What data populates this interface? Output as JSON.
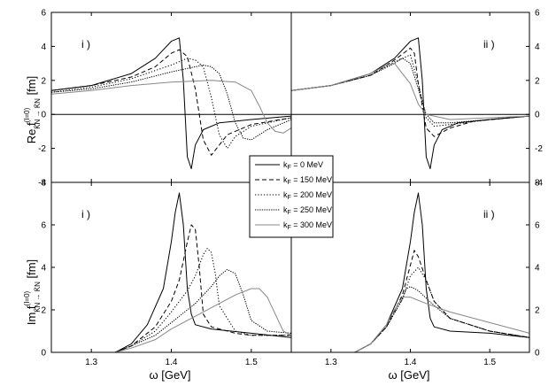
{
  "chart_data": {
    "type": "line",
    "x_unit": "GeV",
    "xlabel": "ω [GeV]",
    "xlim": [
      1.25,
      1.55
    ],
    "x_ticks": [
      "1.3",
      "1.4",
      "1.5"
    ],
    "rows": [
      {
        "ylabel": {
          "pre": "Re f",
          "sup": "(I=0)",
          "sub": "K̄N → K̄N",
          "post": " [fm]"
        },
        "ylim": [
          -4,
          6
        ],
        "y_ticks": [
          "-4",
          "-2",
          "0",
          "2",
          "4",
          "6"
        ],
        "y_ticks_right": [
          "-4",
          "-2",
          "0",
          "2",
          "4",
          "6"
        ]
      },
      {
        "ylabel": {
          "pre": "Im f",
          "sup": "(I=0)",
          "sub": "K̄N → K̄N",
          "post": " [fm]"
        },
        "ylim": [
          0,
          8
        ],
        "y_ticks": [
          "0",
          "2",
          "4",
          "6",
          "8"
        ],
        "y_ticks_right": [
          "0",
          "2",
          "4",
          "6",
          "8"
        ]
      }
    ],
    "panel_labels": [
      "i )",
      "ii )",
      "i )",
      "ii )"
    ],
    "legend": {
      "placement": "center",
      "entries": [
        {
          "label": "k = 0 MeV",
          "sub": "F",
          "dash": "solid",
          "color": "#000000"
        },
        {
          "label": "k = 150 MeV",
          "sub": "F",
          "dash": "dashed",
          "color": "#000000"
        },
        {
          "label": "k = 200 MeV",
          "sub": "F",
          "dash": "dotted",
          "color": "#000000"
        },
        {
          "label": "k = 250 MeV",
          "sub": "F",
          "dash": "dashdot",
          "color": "#000000"
        },
        {
          "label": "k = 300 MeV",
          "sub": "F",
          "dash": "solid",
          "color": "#888888"
        }
      ]
    },
    "panels": [
      {
        "id": "re-i",
        "series": [
          {
            "legend_index": 0,
            "x": [
              1.25,
              1.3,
              1.35,
              1.38,
              1.4,
              1.41,
              1.415,
              1.42,
              1.425,
              1.43,
              1.44,
              1.46,
              1.5,
              1.55
            ],
            "y": [
              1.4,
              1.7,
              2.4,
              3.3,
              4.3,
              4.5,
              2.0,
              -2.5,
              -3.2,
              -1.8,
              -0.9,
              -0.5,
              -0.3,
              -0.1
            ]
          },
          {
            "legend_index": 1,
            "x": [
              1.25,
              1.3,
              1.35,
              1.38,
              1.4,
              1.41,
              1.42,
              1.43,
              1.44,
              1.45,
              1.47,
              1.5,
              1.55
            ],
            "y": [
              1.4,
              1.7,
              2.2,
              2.8,
              3.6,
              3.8,
              3.4,
              1.5,
              -1.5,
              -2.4,
              -1.2,
              -0.6,
              -0.2
            ]
          },
          {
            "legend_index": 2,
            "x": [
              1.25,
              1.3,
              1.35,
              1.4,
              1.42,
              1.43,
              1.44,
              1.45,
              1.46,
              1.47,
              1.48,
              1.5,
              1.55
            ],
            "y": [
              1.3,
              1.6,
              2.1,
              2.9,
              3.3,
              3.2,
              2.8,
              1.0,
              -1.2,
              -2.0,
              -1.3,
              -0.7,
              -0.2
            ]
          },
          {
            "legend_index": 3,
            "x": [
              1.25,
              1.3,
              1.35,
              1.4,
              1.44,
              1.45,
              1.46,
              1.47,
              1.48,
              1.49,
              1.5,
              1.52,
              1.55
            ],
            "y": [
              1.3,
              1.5,
              1.9,
              2.5,
              2.9,
              2.8,
              2.4,
              1.2,
              -0.5,
              -1.4,
              -1.5,
              -0.9,
              -0.3
            ]
          },
          {
            "legend_index": 4,
            "x": [
              1.25,
              1.3,
              1.35,
              1.4,
              1.45,
              1.48,
              1.5,
              1.51,
              1.52,
              1.53,
              1.54,
              1.55
            ],
            "y": [
              1.2,
              1.4,
              1.7,
              1.9,
              2.0,
              1.9,
              1.4,
              0.5,
              -0.5,
              -1.0,
              -1.1,
              -0.8
            ]
          }
        ]
      },
      {
        "id": "re-ii",
        "series": [
          {
            "legend_index": 0,
            "x": [
              1.25,
              1.3,
              1.35,
              1.38,
              1.4,
              1.41,
              1.415,
              1.42,
              1.425,
              1.43,
              1.44,
              1.46,
              1.5,
              1.55
            ],
            "y": [
              1.4,
              1.7,
              2.4,
              3.3,
              4.3,
              4.5,
              2.0,
              -2.5,
              -3.2,
              -1.8,
              -0.9,
              -0.5,
              -0.3,
              -0.1
            ]
          },
          {
            "legend_index": 1,
            "x": [
              1.25,
              1.3,
              1.35,
              1.38,
              1.4,
              1.405,
              1.41,
              1.42,
              1.43,
              1.45,
              1.48,
              1.55
            ],
            "y": [
              1.4,
              1.7,
              2.3,
              3.2,
              3.9,
              3.6,
              1.8,
              -0.8,
              -1.3,
              -0.8,
              -0.4,
              -0.1
            ]
          },
          {
            "legend_index": 2,
            "x": [
              1.25,
              1.3,
              1.35,
              1.38,
              1.4,
              1.41,
              1.42,
              1.43,
              1.45,
              1.5,
              1.55
            ],
            "y": [
              1.4,
              1.7,
              2.3,
              3.1,
              3.5,
              1.8,
              -0.2,
              -0.7,
              -0.6,
              -0.3,
              -0.1
            ]
          },
          {
            "legend_index": 3,
            "x": [
              1.25,
              1.3,
              1.35,
              1.38,
              1.39,
              1.4,
              1.41,
              1.42,
              1.43,
              1.45,
              1.5,
              1.55
            ],
            "y": [
              1.4,
              1.7,
              2.3,
              3.0,
              3.3,
              3.0,
              1.5,
              0.0,
              -0.5,
              -0.5,
              -0.3,
              -0.1
            ]
          },
          {
            "legend_index": 4,
            "x": [
              1.25,
              1.3,
              1.35,
              1.37,
              1.38,
              1.4,
              1.41,
              1.42,
              1.45,
              1.5,
              1.55
            ],
            "y": [
              1.4,
              1.7,
              2.4,
              2.9,
              3.0,
              1.8,
              0.6,
              0.0,
              -0.3,
              -0.2,
              -0.1
            ]
          }
        ]
      },
      {
        "id": "im-i",
        "series": [
          {
            "legend_index": 0,
            "x": [
              1.33,
              1.35,
              1.37,
              1.39,
              1.4,
              1.405,
              1.41,
              1.415,
              1.42,
              1.425,
              1.43,
              1.45,
              1.5,
              1.55
            ],
            "y": [
              0.0,
              0.4,
              1.3,
              3.0,
              5.2,
              6.6,
              7.5,
              6.0,
              3.0,
              1.8,
              1.3,
              1.1,
              0.9,
              0.7
            ]
          },
          {
            "legend_index": 1,
            "x": [
              1.33,
              1.35,
              1.38,
              1.4,
              1.41,
              1.42,
              1.425,
              1.43,
              1.435,
              1.44,
              1.45,
              1.48,
              1.5,
              1.55
            ],
            "y": [
              0.0,
              0.3,
              1.2,
              2.4,
              3.4,
              5.2,
              6.0,
              5.8,
              4.0,
              1.8,
              1.2,
              0.9,
              0.8,
              0.8
            ]
          },
          {
            "legend_index": 2,
            "x": [
              1.33,
              1.35,
              1.38,
              1.4,
              1.42,
              1.43,
              1.44,
              1.445,
              1.45,
              1.455,
              1.46,
              1.48,
              1.5,
              1.55
            ],
            "y": [
              0.0,
              0.3,
              1.0,
              1.9,
              2.9,
              3.6,
              4.6,
              4.9,
              4.7,
              3.7,
              2.2,
              1.0,
              0.8,
              0.8
            ]
          },
          {
            "legend_index": 3,
            "x": [
              1.33,
              1.35,
              1.38,
              1.4,
              1.43,
              1.45,
              1.46,
              1.47,
              1.48,
              1.49,
              1.5,
              1.52,
              1.55
            ],
            "y": [
              0.0,
              0.3,
              0.8,
              1.4,
              2.3,
              3.1,
              3.6,
              3.9,
              3.7,
              2.7,
              1.5,
              1.0,
              0.9
            ]
          },
          {
            "legend_index": 4,
            "x": [
              1.33,
              1.35,
              1.38,
              1.4,
              1.43,
              1.46,
              1.48,
              1.5,
              1.51,
              1.52,
              1.53,
              1.54,
              1.55
            ],
            "y": [
              0.0,
              0.2,
              0.6,
              1.1,
              1.7,
              2.3,
              2.7,
              3.0,
              3.0,
              2.6,
              1.8,
              1.0,
              0.8
            ]
          }
        ]
      },
      {
        "id": "im-ii",
        "series": [
          {
            "legend_index": 0,
            "x": [
              1.33,
              1.35,
              1.37,
              1.39,
              1.4,
              1.405,
              1.41,
              1.415,
              1.42,
              1.425,
              1.43,
              1.45,
              1.5,
              1.55
            ],
            "y": [
              0.0,
              0.4,
              1.3,
              3.0,
              5.2,
              6.6,
              7.5,
              6.0,
              3.0,
              1.6,
              1.2,
              1.0,
              0.9,
              0.7
            ]
          },
          {
            "legend_index": 1,
            "x": [
              1.33,
              1.35,
              1.37,
              1.39,
              1.4,
              1.405,
              1.41,
              1.42,
              1.43,
              1.45,
              1.5,
              1.55
            ],
            "y": [
              0.0,
              0.4,
              1.2,
              2.7,
              4.1,
              4.8,
              4.5,
              3.4,
              2.4,
              1.6,
              1.0,
              0.7
            ]
          },
          {
            "legend_index": 2,
            "x": [
              1.33,
              1.35,
              1.37,
              1.39,
              1.4,
              1.41,
              1.42,
              1.43,
              1.45,
              1.5,
              1.55
            ],
            "y": [
              0.0,
              0.4,
              1.2,
              2.5,
              3.6,
              4.0,
              3.4,
              2.4,
              1.6,
              1.0,
              0.7
            ]
          },
          {
            "legend_index": 3,
            "x": [
              1.33,
              1.35,
              1.37,
              1.39,
              1.395,
              1.4,
              1.41,
              1.43,
              1.45,
              1.5,
              1.55
            ],
            "y": [
              0.0,
              0.4,
              1.2,
              2.5,
              3.0,
              3.1,
              2.9,
              2.2,
              1.6,
              1.0,
              0.7
            ]
          },
          {
            "legend_index": 4,
            "x": [
              1.33,
              1.35,
              1.37,
              1.38,
              1.39,
              1.4,
              1.42,
              1.45,
              1.5,
              1.55
            ],
            "y": [
              0.0,
              0.4,
              1.3,
              2.0,
              2.6,
              2.6,
              2.3,
              1.9,
              1.4,
              0.9
            ]
          }
        ]
      }
    ]
  }
}
